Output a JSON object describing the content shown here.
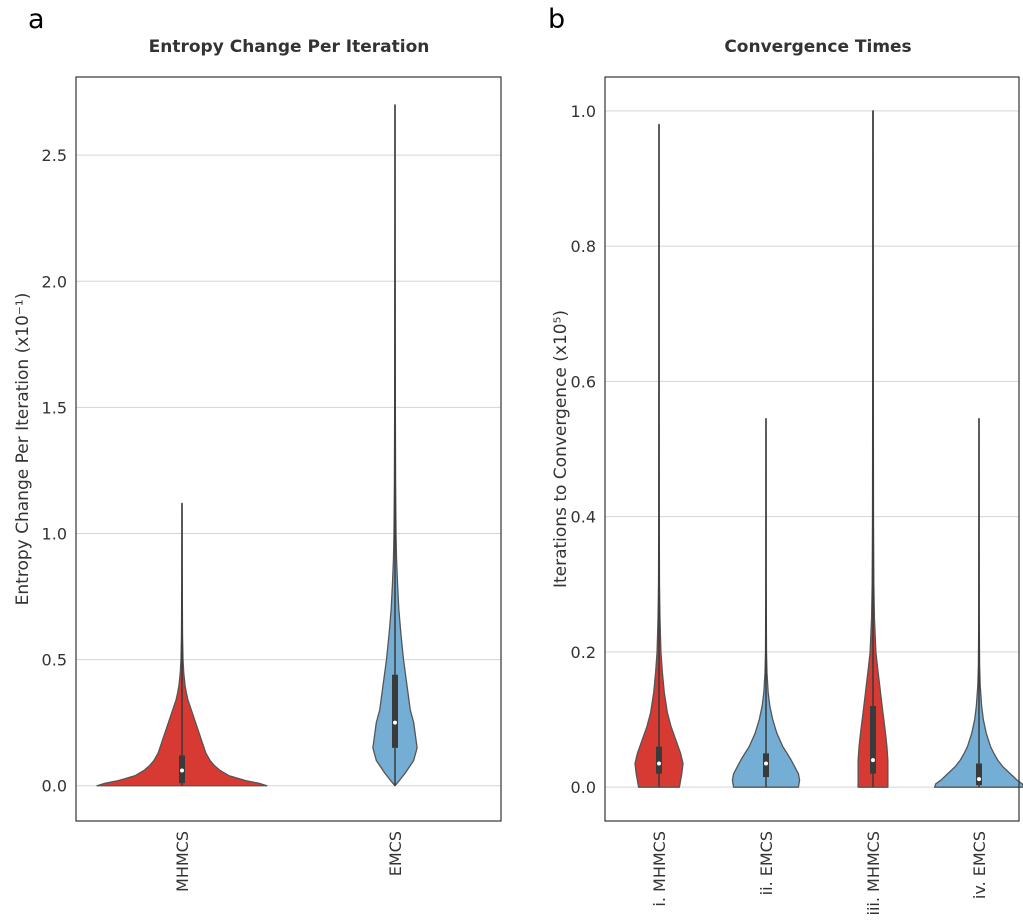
{
  "panels": [
    {
      "letter": "a",
      "colors": {
        "violin_red": "#d73a33",
        "violin_blue": "#74aed4",
        "outline": "#555555",
        "box": "#3a3a3a"
      },
      "chart_data": {
        "type": "violin",
        "title": "Entropy Change Per Iteration",
        "ylabel": "Entropy Change Per Iteration (x10⁻¹)",
        "xlabel": "",
        "ylim": [
          -0.14,
          2.81
        ],
        "yticks": [
          0.0,
          0.5,
          1.0,
          1.5,
          2.0,
          2.5
        ],
        "ytick_labels": [
          "0.0",
          "0.5",
          "1.0",
          "1.5",
          "2.0",
          "2.5"
        ],
        "grid": true,
        "categories": [
          "MHMCS",
          "EMCS"
        ],
        "series": [
          {
            "category": "MHMCS",
            "color": "red",
            "min": 0.0,
            "max": 1.12,
            "q1": 0.01,
            "median": 0.06,
            "q3": 0.12,
            "density": [
              [
                0.0,
                1.0
              ],
              [
                0.01,
                0.9
              ],
              [
                0.02,
                0.75
              ],
              [
                0.04,
                0.55
              ],
              [
                0.06,
                0.45
              ],
              [
                0.08,
                0.38
              ],
              [
                0.1,
                0.33
              ],
              [
                0.13,
                0.28
              ],
              [
                0.16,
                0.25
              ],
              [
                0.19,
                0.22
              ],
              [
                0.22,
                0.19
              ],
              [
                0.25,
                0.16
              ],
              [
                0.28,
                0.13
              ],
              [
                0.31,
                0.1
              ],
              [
                0.34,
                0.07
              ],
              [
                0.37,
                0.05
              ],
              [
                0.4,
                0.035
              ],
              [
                0.45,
                0.02
              ],
              [
                0.5,
                0.012
              ],
              [
                0.6,
                0.006
              ],
              [
                0.8,
                0.003
              ],
              [
                1.12,
                0.0
              ]
            ]
          },
          {
            "category": "EMCS",
            "color": "blue",
            "min": 0.0,
            "max": 2.7,
            "q1": 0.15,
            "median": 0.25,
            "q3": 0.44,
            "density": [
              [
                0.0,
                0.0
              ],
              [
                0.02,
                0.05
              ],
              [
                0.05,
                0.12
              ],
              [
                0.1,
                0.22
              ],
              [
                0.15,
                0.26
              ],
              [
                0.2,
                0.24
              ],
              [
                0.25,
                0.22
              ],
              [
                0.3,
                0.18
              ],
              [
                0.4,
                0.14
              ],
              [
                0.5,
                0.1
              ],
              [
                0.6,
                0.07
              ],
              [
                0.7,
                0.045
              ],
              [
                0.8,
                0.03
              ],
              [
                0.9,
                0.018
              ],
              [
                1.0,
                0.012
              ],
              [
                1.2,
                0.007
              ],
              [
                1.5,
                0.004
              ],
              [
                2.0,
                0.002
              ],
              [
                2.7,
                0.0
              ]
            ]
          }
        ]
      }
    },
    {
      "letter": "b",
      "colors": {
        "violin_red": "#d73a33",
        "violin_blue": "#74aed4",
        "outline": "#555555",
        "box": "#3a3a3a"
      },
      "chart_data": {
        "type": "violin",
        "title": "Convergence Times",
        "ylabel": "Iterations to Convergence (x10⁵)",
        "xlabel": "",
        "ylim": [
          -0.05,
          1.05
        ],
        "yticks": [
          0.0,
          0.2,
          0.4,
          0.6,
          0.8,
          1.0
        ],
        "ytick_labels": [
          "0.0",
          "0.2",
          "0.4",
          "0.6",
          "0.8",
          "1.0"
        ],
        "grid": true,
        "categories": [
          "i. MHMCS",
          "ii. EMCS",
          "iii. MHMCS",
          "iv. EMCS"
        ],
        "series": [
          {
            "category": "i. MHMCS",
            "color": "red",
            "min": 0.0,
            "max": 0.98,
            "q1": 0.02,
            "median": 0.035,
            "q3": 0.06,
            "density": [
              [
                0.0,
                0.85
              ],
              [
                0.01,
                0.9
              ],
              [
                0.02,
                0.95
              ],
              [
                0.035,
                1.0
              ],
              [
                0.05,
                0.9
              ],
              [
                0.07,
                0.7
              ],
              [
                0.09,
                0.5
              ],
              [
                0.11,
                0.35
              ],
              [
                0.14,
                0.22
              ],
              [
                0.17,
                0.14
              ],
              [
                0.2,
                0.08
              ],
              [
                0.25,
                0.04
              ],
              [
                0.3,
                0.02
              ],
              [
                0.4,
                0.01
              ],
              [
                0.6,
                0.005
              ],
              [
                0.98,
                0.0
              ]
            ]
          },
          {
            "category": "ii. EMCS",
            "color": "blue",
            "min": 0.0,
            "max": 0.545,
            "q1": 0.015,
            "median": 0.035,
            "q3": 0.05,
            "density": [
              [
                0.0,
                1.35
              ],
              [
                0.01,
                1.4
              ],
              [
                0.02,
                1.35
              ],
              [
                0.03,
                1.2
              ],
              [
                0.04,
                1.05
              ],
              [
                0.05,
                0.88
              ],
              [
                0.06,
                0.7
              ],
              [
                0.08,
                0.45
              ],
              [
                0.1,
                0.28
              ],
              [
                0.12,
                0.16
              ],
              [
                0.14,
                0.09
              ],
              [
                0.17,
                0.04
              ],
              [
                0.2,
                0.02
              ],
              [
                0.3,
                0.008
              ],
              [
                0.545,
                0.0
              ]
            ]
          },
          {
            "category": "iii. MHMCS",
            "color": "red",
            "min": 0.0,
            "max": 1.0,
            "q1": 0.02,
            "median": 0.04,
            "q3": 0.12,
            "density": [
              [
                0.0,
                0.62
              ],
              [
                0.02,
                0.62
              ],
              [
                0.04,
                0.62
              ],
              [
                0.06,
                0.58
              ],
              [
                0.08,
                0.52
              ],
              [
                0.1,
                0.45
              ],
              [
                0.12,
                0.38
              ],
              [
                0.15,
                0.28
              ],
              [
                0.18,
                0.18
              ],
              [
                0.2,
                0.12
              ],
              [
                0.25,
                0.06
              ],
              [
                0.3,
                0.035
              ],
              [
                0.4,
                0.02
              ],
              [
                0.6,
                0.012
              ],
              [
                0.8,
                0.008
              ],
              [
                1.0,
                0.006
              ]
            ]
          },
          {
            "category": "iv. EMCS",
            "color": "blue",
            "min": 0.0,
            "max": 0.545,
            "q1": 0.003,
            "median": 0.012,
            "q3": 0.035,
            "density": [
              [
                0.0,
                1.85
              ],
              [
                0.005,
                1.8
              ],
              [
                0.01,
                1.6
              ],
              [
                0.02,
                1.3
              ],
              [
                0.03,
                1.0
              ],
              [
                0.04,
                0.78
              ],
              [
                0.05,
                0.62
              ],
              [
                0.06,
                0.48
              ],
              [
                0.08,
                0.3
              ],
              [
                0.1,
                0.18
              ],
              [
                0.12,
                0.11
              ],
              [
                0.15,
                0.05
              ],
              [
                0.18,
                0.025
              ],
              [
                0.25,
                0.01
              ],
              [
                0.545,
                0.0
              ]
            ]
          }
        ]
      }
    }
  ]
}
